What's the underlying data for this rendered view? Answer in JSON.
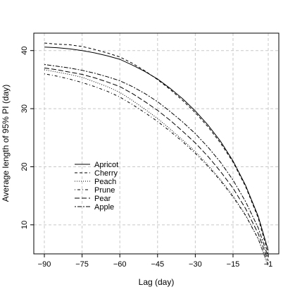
{
  "chart_data": {
    "type": "line",
    "title": "",
    "xlabel": "Lag (day)",
    "ylabel": "Average length of 95% PI (day)",
    "xlim": [
      -90,
      -1
    ],
    "ylim": [
      5,
      43
    ],
    "xticks": [
      -90,
      -75,
      -60,
      -45,
      -30,
      -15,
      -1
    ],
    "xtick_labels": [
      "−90",
      "−75",
      "−60",
      "−45",
      "−30",
      "−15",
      "−1"
    ],
    "yticks": [
      10,
      20,
      30,
      40
    ],
    "ytick_labels": [
      "10",
      "20",
      "30",
      "40"
    ],
    "grid": true,
    "legend_position": "lower-left",
    "x": [
      -90,
      -85,
      -80,
      -75,
      -70,
      -65,
      -60,
      -55,
      -50,
      -45,
      -40,
      -35,
      -30,
      -25,
      -20,
      -15,
      -10,
      -5,
      -1
    ],
    "series": [
      {
        "name": "Apricot",
        "dash": "solid",
        "values": [
          40.6,
          40.5,
          40.3,
          40.0,
          39.6,
          39.1,
          38.5,
          37.5,
          36.4,
          35.1,
          33.5,
          31.7,
          29.6,
          27.2,
          24.4,
          21.0,
          16.8,
          11.5,
          5.6
        ]
      },
      {
        "name": "Cherry",
        "dash": "dashed",
        "values": [
          41.3,
          41.1,
          41.0,
          40.7,
          40.2,
          39.6,
          38.9,
          37.8,
          36.5,
          35.0,
          33.3,
          31.4,
          29.3,
          26.9,
          24.1,
          20.8,
          16.6,
          11.2,
          4.9
        ]
      },
      {
        "name": "Peach",
        "dash": "dotted",
        "values": [
          36.7,
          36.3,
          35.9,
          35.4,
          34.6,
          33.8,
          32.8,
          31.4,
          29.9,
          28.3,
          26.5,
          24.6,
          22.6,
          20.3,
          17.8,
          15.0,
          11.7,
          7.6,
          2.8
        ]
      },
      {
        "name": "Prune",
        "dash": "dotdash",
        "values": [
          36.0,
          35.6,
          35.1,
          34.5,
          33.8,
          33.0,
          32.0,
          30.7,
          29.3,
          27.8,
          26.1,
          24.3,
          22.3,
          20.1,
          17.6,
          14.8,
          11.6,
          7.6,
          3.2
        ]
      },
      {
        "name": "Pear",
        "dash": "longdash",
        "values": [
          37.0,
          36.7,
          36.3,
          35.9,
          35.3,
          34.6,
          33.8,
          32.6,
          31.2,
          29.7,
          28.0,
          26.1,
          24.1,
          21.8,
          19.2,
          16.3,
          12.8,
          8.5,
          3.8
        ]
      },
      {
        "name": "Apple",
        "dash": "twodash",
        "values": [
          37.6,
          37.3,
          37.0,
          36.6,
          36.1,
          35.5,
          34.8,
          33.8,
          32.6,
          31.2,
          29.5,
          27.7,
          25.7,
          23.4,
          20.8,
          17.7,
          14.0,
          9.5,
          4.4
        ]
      }
    ]
  }
}
